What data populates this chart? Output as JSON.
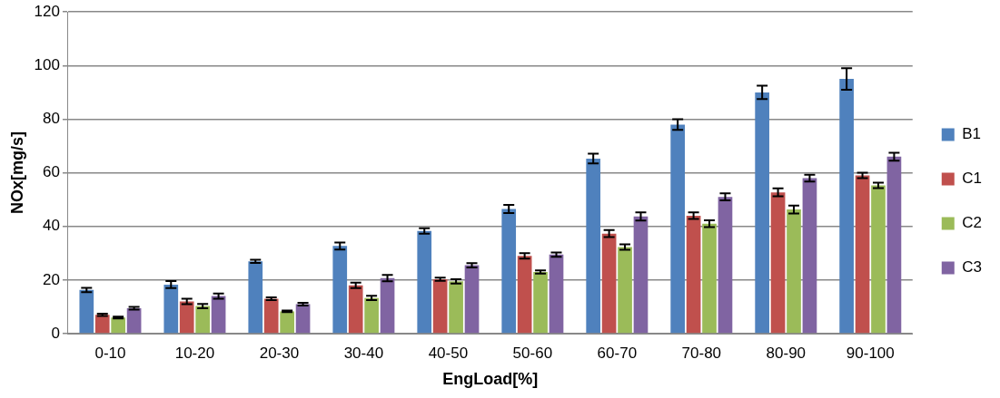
{
  "chart_data": {
    "type": "bar",
    "xlabel": "EngLoad[%]",
    "ylabel": "NOx[mg/s]",
    "categories": [
      "0-10",
      "10-20",
      "20-30",
      "30-40",
      "40-50",
      "50-60",
      "60-70",
      "70-80",
      "80-90",
      "90-100"
    ],
    "series": [
      {
        "name": "B1",
        "color": "#4f81bd",
        "values": [
          16.3,
          18.3,
          27,
          32.7,
          38.3,
          46.5,
          65.3,
          78,
          90,
          95
        ],
        "errors": [
          0.8,
          1.3,
          0.6,
          1.3,
          1,
          1.5,
          1.8,
          2,
          2.5,
          4
        ]
      },
      {
        "name": "C1",
        "color": "#c0504d",
        "values": [
          7,
          12,
          13,
          18,
          20.3,
          29,
          37.3,
          44,
          52.7,
          59
        ],
        "errors": [
          0.4,
          1,
          0.5,
          1,
          0.6,
          1,
          1.3,
          1.2,
          1.5,
          1
        ]
      },
      {
        "name": "C2",
        "color": "#9bbb59",
        "values": [
          6,
          10.3,
          8.3,
          13.3,
          19.5,
          23,
          32.3,
          41,
          46.3,
          55.3
        ],
        "errors": [
          0.3,
          0.8,
          0.3,
          0.8,
          0.8,
          0.6,
          1,
          1.3,
          1.5,
          1
        ]
      },
      {
        "name": "C3",
        "color": "#8064a2",
        "values": [
          9.5,
          14,
          11,
          20.7,
          25.5,
          29.5,
          43.7,
          51,
          58,
          66
        ],
        "errors": [
          0.5,
          1,
          0.5,
          1.2,
          0.8,
          0.8,
          1.5,
          1.3,
          1.3,
          1.5
        ]
      }
    ],
    "ylim": [
      0,
      120
    ],
    "yticks": [
      0,
      20,
      40,
      60,
      80,
      100,
      120
    ],
    "grid": "y",
    "legend": "right"
  }
}
